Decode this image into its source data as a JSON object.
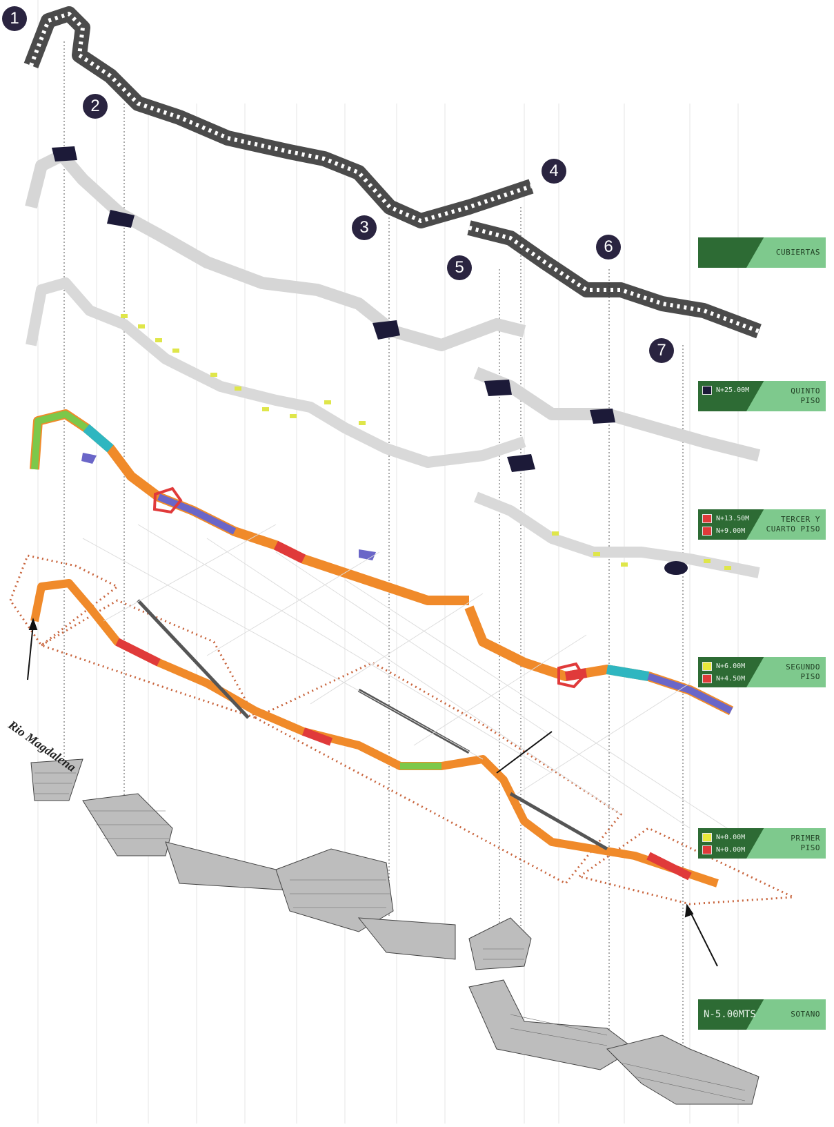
{
  "markers": [
    "1",
    "2",
    "3",
    "4",
    "5",
    "6",
    "7"
  ],
  "river_label": "Rio Magdalena",
  "legend": [
    {
      "title": "CUBIERTAS",
      "levels": []
    },
    {
      "title": "QUINTO PISO",
      "levels": [
        {
          "text": "N+25.00M",
          "color": "#1c1a38"
        }
      ]
    },
    {
      "title": "TERCER Y CUARTO PISO",
      "levels": [
        {
          "text": "N+13.50M",
          "color": "#e03a3a"
        },
        {
          "text": "N+9.00M",
          "color": "#e03a3a"
        }
      ]
    },
    {
      "title": "SEGUNDO PISO",
      "levels": [
        {
          "text": "N+6.00M",
          "color": "#e8e83a"
        },
        {
          "text": "N+4.50M",
          "color": "#e03a3a"
        }
      ]
    },
    {
      "title": "PRIMER PISO",
      "levels": [
        {
          "text": "N+0.00M",
          "color": "#e8e83a"
        },
        {
          "text": "N+0.00M",
          "color": "#e03a3a"
        }
      ]
    },
    {
      "title": "SOTANO",
      "levels": [],
      "big_text": "N-5.00MTS"
    }
  ],
  "colors": {
    "roof": "#2b2b2b",
    "ghost": "#d6d6d6",
    "commercial": "#f08a2a",
    "green": "#7cc84a",
    "cyan": "#2fb6c0",
    "red": "#e03a3a",
    "purple": "#6a66c8",
    "yellow": "#dfe64a",
    "basement": "#bdbdbd",
    "boundary": "#c8643c",
    "dark_node": "#1c1a38"
  }
}
